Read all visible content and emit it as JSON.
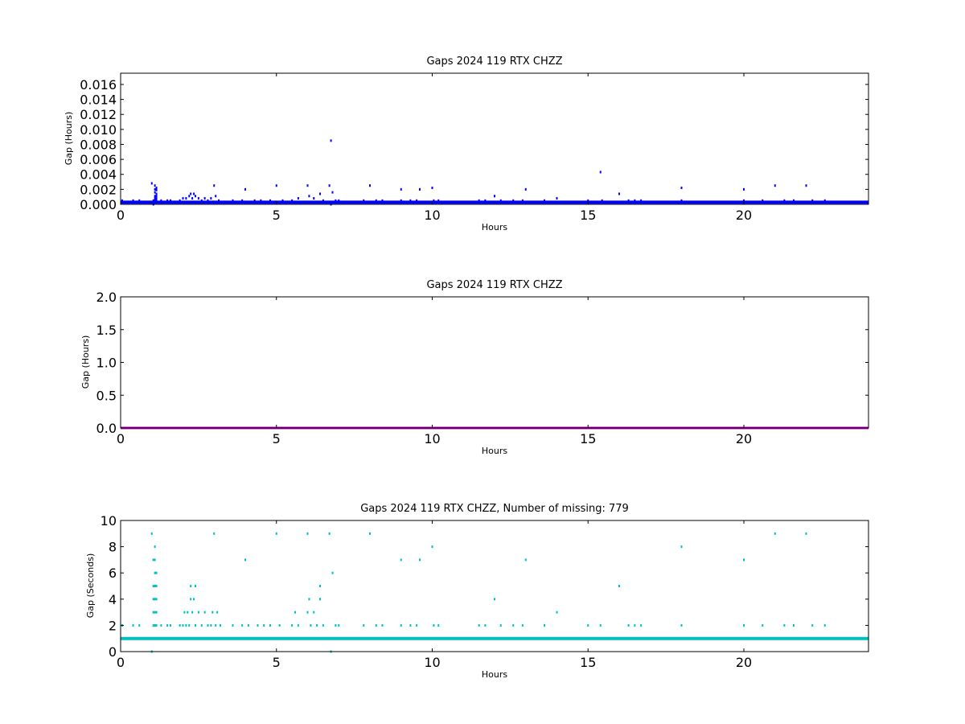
{
  "chart_data": [
    {
      "type": "scatter",
      "title": "Gaps 2024 119 RTX  CHZZ",
      "xlabel": "Hours",
      "ylabel": "Gap (Hours)",
      "xlim": [
        0,
        24
      ],
      "ylim": [
        0,
        0.0175
      ],
      "xticks": [
        "0",
        "5",
        "10",
        "15",
        "20"
      ],
      "xtick_values": [
        0,
        5,
        10,
        15,
        20
      ],
      "yticks": [
        "0.000",
        "0.002",
        "0.004",
        "0.006",
        "0.008",
        "0.010",
        "0.012",
        "0.014",
        "0.016"
      ],
      "ytick_values": [
        0,
        0.002,
        0.004,
        0.006,
        0.008,
        0.01,
        0.012,
        0.014,
        0.016
      ],
      "color": "#0000ff",
      "baseline": 0.00028,
      "points": [
        [
          0.05,
          0.0005
        ],
        [
          0.4,
          0.0005
        ],
        [
          0.6,
          0.0005
        ],
        [
          1.0,
          0.0028
        ],
        [
          1.05,
          0.0005
        ],
        [
          1.05,
          0.0
        ],
        [
          1.1,
          0.0025
        ],
        [
          1.1,
          0.002
        ],
        [
          1.1,
          0.0016
        ],
        [
          1.1,
          0.0011
        ],
        [
          1.1,
          0.0008
        ],
        [
          1.1,
          0.0005
        ],
        [
          1.15,
          0.0022
        ],
        [
          1.15,
          0.0019
        ],
        [
          1.15,
          0.0014
        ],
        [
          1.15,
          0.0011
        ],
        [
          1.15,
          0.0008
        ],
        [
          1.15,
          0.0005
        ],
        [
          1.3,
          0.0005
        ],
        [
          1.5,
          0.0005
        ],
        [
          1.6,
          0.0005
        ],
        [
          1.9,
          0.0005
        ],
        [
          2.0,
          0.0008
        ],
        [
          2.1,
          0.0008
        ],
        [
          2.2,
          0.0011
        ],
        [
          2.25,
          0.0014
        ],
        [
          2.3,
          0.0008
        ],
        [
          2.35,
          0.0014
        ],
        [
          2.4,
          0.0011
        ],
        [
          2.5,
          0.0008
        ],
        [
          2.6,
          0.0005
        ],
        [
          2.7,
          0.0008
        ],
        [
          2.8,
          0.0005
        ],
        [
          2.9,
          0.0008
        ],
        [
          3.0,
          0.0025
        ],
        [
          3.05,
          0.0011
        ],
        [
          3.15,
          0.0005
        ],
        [
          3.6,
          0.0005
        ],
        [
          3.9,
          0.0005
        ],
        [
          4.0,
          0.002
        ],
        [
          4.3,
          0.0005
        ],
        [
          4.5,
          0.0005
        ],
        [
          4.8,
          0.0005
        ],
        [
          5.0,
          0.0025
        ],
        [
          5.2,
          0.0005
        ],
        [
          5.5,
          0.0005
        ],
        [
          5.7,
          0.0008
        ],
        [
          6.0,
          0.0025
        ],
        [
          6.05,
          0.0011
        ],
        [
          6.2,
          0.0008
        ],
        [
          6.4,
          0.0014
        ],
        [
          6.5,
          0.0005
        ],
        [
          6.7,
          0.0025
        ],
        [
          6.8,
          0.0016
        ],
        [
          6.75,
          0.0085
        ],
        [
          6.75,
          0.0
        ],
        [
          6.9,
          0.0005
        ],
        [
          7.0,
          0.0005
        ],
        [
          7.8,
          0.0005
        ],
        [
          8.0,
          0.0025
        ],
        [
          8.2,
          0.0005
        ],
        [
          8.4,
          0.0005
        ],
        [
          9.0,
          0.002
        ],
        [
          9.0,
          0.0005
        ],
        [
          9.3,
          0.0005
        ],
        [
          9.5,
          0.0005
        ],
        [
          9.6,
          0.002
        ],
        [
          10.0,
          0.0022
        ],
        [
          10.05,
          0.0005
        ],
        [
          10.2,
          0.0005
        ],
        [
          11.5,
          0.0005
        ],
        [
          11.7,
          0.0005
        ],
        [
          12.0,
          0.0011
        ],
        [
          12.2,
          0.0005
        ],
        [
          12.6,
          0.0005
        ],
        [
          12.9,
          0.0005
        ],
        [
          13.0,
          0.002
        ],
        [
          13.6,
          0.0005
        ],
        [
          14.0,
          0.0008
        ],
        [
          15.0,
          0.0005
        ],
        [
          15.4,
          0.0043
        ],
        [
          15.45,
          0.0005
        ],
        [
          16.0,
          0.0014
        ],
        [
          16.3,
          0.0005
        ],
        [
          16.5,
          0.0005
        ],
        [
          16.7,
          0.0005
        ],
        [
          18.0,
          0.0022
        ],
        [
          18.0,
          0.0005
        ],
        [
          20.0,
          0.002
        ],
        [
          20.0,
          0.0005
        ],
        [
          20.6,
          0.0005
        ],
        [
          21.0,
          0.0025
        ],
        [
          21.3,
          0.0005
        ],
        [
          21.6,
          0.0005
        ],
        [
          22.0,
          0.0025
        ],
        [
          22.2,
          0.0005
        ],
        [
          22.6,
          0.0005
        ]
      ]
    },
    {
      "type": "line",
      "title": "Gaps 2024 119 RTX  CHZZ",
      "xlabel": "Hours",
      "ylabel": "Gap (Hours)",
      "xlim": [
        0,
        24
      ],
      "ylim": [
        0,
        2
      ],
      "xticks": [
        "0",
        "5",
        "10",
        "15",
        "20"
      ],
      "xtick_values": [
        0,
        5,
        10,
        15,
        20
      ],
      "yticks": [
        "0.0",
        "0.5",
        "1.0",
        "1.5",
        "2.0"
      ],
      "ytick_values": [
        0,
        0.5,
        1.0,
        1.5,
        2.0
      ],
      "color": "#bf00bf",
      "baseline": 0.0
    },
    {
      "type": "scatter",
      "title": "Gaps 2024 119 RTX  CHZZ, Number of missing: 779",
      "xlabel": "Hours",
      "ylabel": "Gap (Seconds)",
      "xlim": [
        0,
        24
      ],
      "ylim": [
        0,
        10
      ],
      "xticks": [
        "0",
        "5",
        "10",
        "15",
        "20"
      ],
      "xtick_values": [
        0,
        5,
        10,
        15,
        20
      ],
      "yticks": [
        "0",
        "2",
        "4",
        "6",
        "8",
        "10"
      ],
      "ytick_values": [
        0,
        2,
        4,
        6,
        8,
        10
      ],
      "color": "#00bfbf",
      "baseline": 1.0,
      "points": [
        [
          0.05,
          2
        ],
        [
          0.4,
          2
        ],
        [
          0.6,
          2
        ],
        [
          1.0,
          9
        ],
        [
          1.0,
          0
        ],
        [
          1.05,
          2
        ],
        [
          1.05,
          5
        ],
        [
          1.05,
          4
        ],
        [
          1.05,
          3
        ],
        [
          1.05,
          7
        ],
        [
          1.1,
          8
        ],
        [
          1.1,
          7
        ],
        [
          1.1,
          6
        ],
        [
          1.1,
          5
        ],
        [
          1.1,
          4
        ],
        [
          1.1,
          3
        ],
        [
          1.1,
          2
        ],
        [
          1.15,
          6
        ],
        [
          1.15,
          5
        ],
        [
          1.15,
          4
        ],
        [
          1.15,
          3
        ],
        [
          1.15,
          2
        ],
        [
          1.3,
          2
        ],
        [
          1.5,
          2
        ],
        [
          1.6,
          2
        ],
        [
          1.9,
          2
        ],
        [
          2.0,
          2
        ],
        [
          2.05,
          3
        ],
        [
          2.1,
          2
        ],
        [
          2.15,
          3
        ],
        [
          2.2,
          2
        ],
        [
          2.25,
          4
        ],
        [
          2.25,
          5
        ],
        [
          2.3,
          3
        ],
        [
          2.35,
          4
        ],
        [
          2.4,
          5
        ],
        [
          2.4,
          2
        ],
        [
          2.5,
          3
        ],
        [
          2.6,
          2
        ],
        [
          2.7,
          3
        ],
        [
          2.8,
          2
        ],
        [
          2.9,
          2
        ],
        [
          2.95,
          3
        ],
        [
          3.0,
          9
        ],
        [
          3.05,
          2
        ],
        [
          3.1,
          3
        ],
        [
          3.2,
          2
        ],
        [
          3.6,
          2
        ],
        [
          3.9,
          2
        ],
        [
          4.0,
          7
        ],
        [
          4.1,
          2
        ],
        [
          4.4,
          2
        ],
        [
          4.6,
          2
        ],
        [
          4.8,
          2
        ],
        [
          5.0,
          9
        ],
        [
          5.1,
          2
        ],
        [
          5.5,
          2
        ],
        [
          5.6,
          3
        ],
        [
          5.7,
          2
        ],
        [
          6.0,
          9
        ],
        [
          6.0,
          3
        ],
        [
          6.05,
          4
        ],
        [
          6.1,
          2
        ],
        [
          6.2,
          3
        ],
        [
          6.3,
          2
        ],
        [
          6.4,
          4
        ],
        [
          6.4,
          5
        ],
        [
          6.5,
          2
        ],
        [
          6.7,
          9
        ],
        [
          6.75,
          0
        ],
        [
          6.8,
          6
        ],
        [
          6.9,
          2
        ],
        [
          7.0,
          2
        ],
        [
          7.8,
          2
        ],
        [
          8.0,
          9
        ],
        [
          8.2,
          2
        ],
        [
          8.4,
          2
        ],
        [
          9.0,
          7
        ],
        [
          9.0,
          2
        ],
        [
          9.3,
          2
        ],
        [
          9.5,
          2
        ],
        [
          9.6,
          7
        ],
        [
          10.0,
          8
        ],
        [
          10.05,
          2
        ],
        [
          10.2,
          2
        ],
        [
          11.5,
          2
        ],
        [
          11.7,
          2
        ],
        [
          12.0,
          4
        ],
        [
          12.2,
          2
        ],
        [
          12.6,
          2
        ],
        [
          12.9,
          2
        ],
        [
          13.0,
          7
        ],
        [
          13.6,
          2
        ],
        [
          14.0,
          3
        ],
        [
          15.0,
          2
        ],
        [
          15.4,
          2
        ],
        [
          16.0,
          5
        ],
        [
          16.3,
          2
        ],
        [
          16.5,
          2
        ],
        [
          16.7,
          2
        ],
        [
          18.0,
          8
        ],
        [
          18.0,
          2
        ],
        [
          20.0,
          7
        ],
        [
          20.0,
          2
        ],
        [
          20.6,
          2
        ],
        [
          21.0,
          9
        ],
        [
          21.3,
          2
        ],
        [
          21.6,
          2
        ],
        [
          22.0,
          9
        ],
        [
          22.2,
          2
        ],
        [
          22.6,
          2
        ]
      ]
    }
  ]
}
